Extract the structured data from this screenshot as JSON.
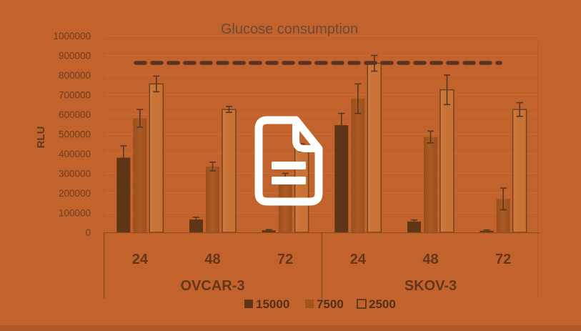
{
  "figure": {
    "background_color": "#c2632e",
    "ink_color": "#66361a",
    "title_color": "#6f4936"
  },
  "overlay": {
    "icon": "document-icon",
    "color": "#ffffff"
  },
  "chart_data": {
    "type": "bar",
    "title": "Glucose consumption",
    "xlabel": "",
    "ylabel": "RLU",
    "ylim": [
      0,
      1000000
    ],
    "ytick_step": 100000,
    "ytick_labels": [
      "0",
      "100000",
      "200000",
      "300000",
      "400000",
      "500000",
      "600000",
      "700000",
      "800000",
      "900000",
      "1000000"
    ],
    "grid": true,
    "legend_position": "bottom",
    "group_axis": [
      {
        "group": "OVCAR-3",
        "ticks": [
          "24",
          "48",
          "72"
        ]
      },
      {
        "group": "SKOV-3",
        "ticks": [
          "24",
          "48",
          "72"
        ]
      }
    ],
    "series": [
      {
        "name": "15000",
        "style": "filled-dark",
        "color": "#5e3516",
        "values": [
          380000,
          65000,
          10000,
          545000,
          55000,
          8000
        ],
        "errors": [
          60000,
          12000,
          4000,
          60000,
          8000,
          4000
        ]
      },
      {
        "name": "7500",
        "style": "filled-medium",
        "color": "#a3541e",
        "values": [
          580000,
          335000,
          280000,
          680000,
          485000,
          170000
        ],
        "errors": [
          45000,
          22000,
          20000,
          75000,
          30000,
          55000
        ]
      },
      {
        "name": "2500",
        "style": "outlined",
        "color": "#c97438",
        "outline_color": "#74411e",
        "values": [
          755000,
          625000,
          430000,
          860000,
          725000,
          625000
        ],
        "errors": [
          40000,
          15000,
          20000,
          40000,
          75000,
          35000
        ]
      }
    ],
    "reference_line": {
      "value": 862000,
      "style": "dashed",
      "color": "#5a3322"
    },
    "error_bar_color": "#5a3620",
    "gridline_color": "#cb7944",
    "axis_color": "#8f4c1f"
  }
}
